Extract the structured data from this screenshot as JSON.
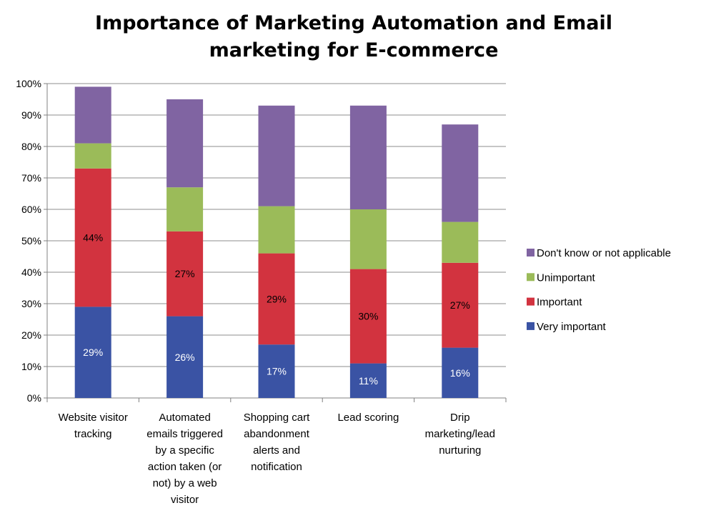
{
  "chart_data": {
    "type": "bar",
    "stacked": true,
    "title": "Importance of Marketing Automation and Email marketing for E-commerce",
    "xlabel": "",
    "ylabel": "",
    "ylim": [
      0,
      100
    ],
    "yticks": [
      "0%",
      "10%",
      "20%",
      "30%",
      "40%",
      "50%",
      "60%",
      "70%",
      "80%",
      "90%",
      "100%"
    ],
    "grid": true,
    "legend_position": "right",
    "categories": [
      "Website visitor tracking",
      "Automated emails triggered by a specific action taken (or not) by a web visitor",
      "Shopping cart abandonment alerts and notification",
      "Lead scoring",
      "Drip marketing/lead nurturing"
    ],
    "category_lines": [
      [
        "Website visitor",
        "tracking"
      ],
      [
        "Automated",
        "emails triggered",
        "by a specific",
        "action taken (or",
        "not) by a web",
        "visitor"
      ],
      [
        "Shopping cart",
        "abandonment",
        "alerts and",
        "notification"
      ],
      [
        "Lead scoring"
      ],
      [
        "Drip",
        "marketing/lead",
        "nurturing"
      ]
    ],
    "series": [
      {
        "name": "Very important",
        "color": "#3A53A4",
        "values": [
          29,
          26,
          17,
          11,
          16
        ],
        "labels": [
          "29%",
          "26%",
          "17%",
          "11%",
          "16%"
        ],
        "label_color": "#ffffff"
      },
      {
        "name": "Important",
        "color": "#D2333F",
        "values": [
          44,
          27,
          29,
          30,
          27
        ],
        "labels": [
          "44%",
          "27%",
          "29%",
          "30%",
          "27%"
        ],
        "label_color": "#000000"
      },
      {
        "name": "Unimportant",
        "color": "#9BBB59",
        "values": [
          8,
          14,
          15,
          19,
          13
        ],
        "labels": [],
        "label_color": "#000000"
      },
      {
        "name": "Don't know or not applicable",
        "color": "#8064A2",
        "values": [
          18,
          28,
          32,
          33,
          31
        ],
        "labels": [],
        "label_color": "#000000"
      }
    ]
  }
}
